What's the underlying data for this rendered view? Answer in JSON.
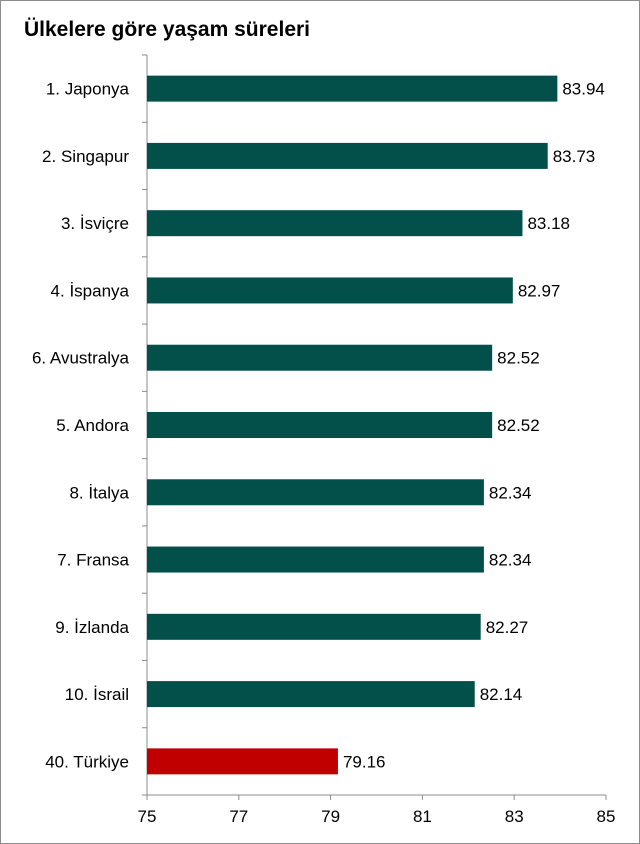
{
  "chart_data": {
    "type": "bar",
    "orientation": "horizontal",
    "title": "Ülkelere göre yaşam süreleri",
    "categories": [
      "1. Japonya",
      "2. Singapur",
      "3. İsviçre",
      "4. İspanya",
      "6. Avustralya",
      "5. Andora",
      "8. İtalya",
      "7. Fransa",
      "9. İzlanda",
      "10. İsrail",
      "40. Türkiye"
    ],
    "values": [
      83.94,
      83.73,
      83.18,
      82.97,
      82.52,
      82.52,
      82.34,
      82.34,
      82.27,
      82.14,
      79.16
    ],
    "value_labels": [
      "83.94",
      "83.73",
      "83.18",
      "82.97",
      "82.52",
      "82.52",
      "82.34",
      "82.34",
      "82.27",
      "82.14",
      "79.16"
    ],
    "xlim": [
      75,
      85
    ],
    "x_ticks": [
      "75",
      "77",
      "79",
      "81",
      "83",
      "85"
    ],
    "xlabel": "",
    "ylabel": "",
    "grid": false,
    "colors": {
      "bar": "#03504A",
      "highlight": "#C00000",
      "axis": "#8c8c8c"
    },
    "highlight_category": "40. Türkiye"
  }
}
